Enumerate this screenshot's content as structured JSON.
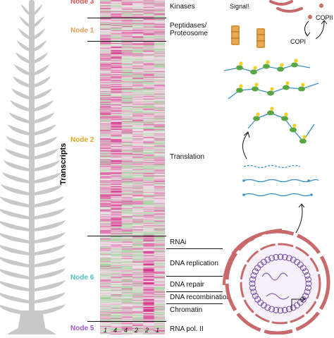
{
  "figure": {
    "y_axis_label": "Transcripts",
    "nodes": [
      {
        "id": "node3",
        "label": "Node 3",
        "color": "#d9534f"
      },
      {
        "id": "node1",
        "label": "Node 1",
        "color": "#e8a35a"
      },
      {
        "id": "node2",
        "label": "Node 2",
        "color": "#d4aa1f"
      },
      {
        "id": "node6",
        "label": "Node 6",
        "color": "#4fc4c4"
      },
      {
        "id": "node5",
        "label": "Node 5",
        "color": "#9b59d0"
      }
    ],
    "categories": [
      {
        "label": "Kinases"
      },
      {
        "label": "Peptidases/"
      },
      {
        "label": "Proteosome"
      },
      {
        "label": "Translation"
      },
      {
        "label": "RNAi"
      },
      {
        "label": "DNA replication"
      },
      {
        "label": "DNA repair"
      },
      {
        "label": "DNA recombination"
      },
      {
        "label": "Chromatin"
      },
      {
        "label": "RNA pol. II"
      }
    ],
    "column_ticks": [
      "1",
      "4",
      "4",
      "2",
      "2",
      "1"
    ],
    "heatmap_colors": {
      "high": "#d6338a",
      "mid": "#f3e6ee",
      "low": "#8fcf8a"
    },
    "illustration": {
      "signal_text": "Signal!",
      "copii_text": "COPII",
      "copi_text": "COPI"
    }
  }
}
